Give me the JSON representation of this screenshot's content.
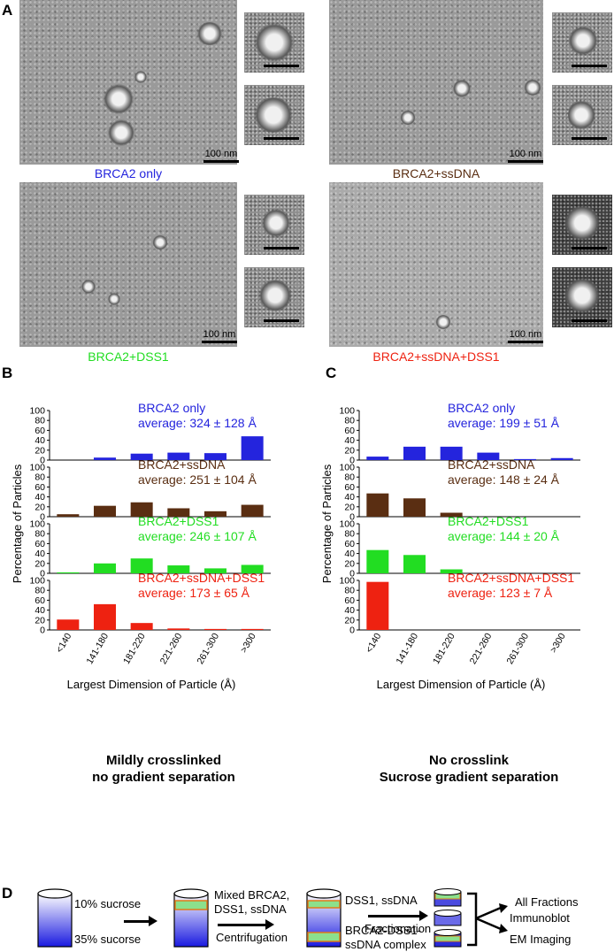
{
  "panels": {
    "a": "A",
    "b": "B",
    "c": "C",
    "d": "D"
  },
  "colors": {
    "blue": "#2424dd",
    "brown": "#5a2e12",
    "green": "#22dd22",
    "red": "#ee2211"
  },
  "micrographs": [
    {
      "caption": "BRCA2 only",
      "scale": "100 nm",
      "color": "#2424dd"
    },
    {
      "caption": "BRCA2+ssDNA",
      "scale": "100 nm",
      "color": "#5a2e12"
    },
    {
      "caption": "BRCA2+DSS1",
      "scale": "100 nm",
      "color": "#22dd22"
    },
    {
      "caption": "BRCA2+ssDNA+DSS1",
      "scale": "100 nm",
      "color": "#ee2211"
    }
  ],
  "chart_data": [
    {
      "type": "bar",
      "panel": "B",
      "ylabel": "Percentage of Particles",
      "xlabel": "Largest Dimension of Particle (Å)",
      "categories": [
        "<140",
        "141-180",
        "181-220",
        "221-260",
        "261-300",
        ">300"
      ],
      "yticks": [
        0,
        20,
        40,
        60,
        80,
        100
      ],
      "ylim": [
        0,
        100
      ],
      "series": [
        {
          "name": "BRCA2 only",
          "avg": "average: 324 ± 128 Å",
          "color": "#2424dd",
          "values": [
            0,
            5,
            13,
            15,
            14,
            48
          ]
        },
        {
          "name": "BRCA2+ssDNA",
          "avg": "average: 251 ± 104 Å",
          "color": "#5a2e12",
          "values": [
            5,
            22,
            29,
            17,
            11,
            24
          ]
        },
        {
          "name": "BRCA2+DSS1",
          "avg": "average: 246 ± 107 Å",
          "color": "#22dd22",
          "values": [
            2,
            20,
            30,
            16,
            10,
            17
          ]
        },
        {
          "name": "BRCA2+ssDNA+DSS1",
          "avg": "average: 173 ± 65 Å",
          "color": "#ee2211",
          "values": [
            21,
            52,
            14,
            3,
            2,
            2
          ]
        }
      ],
      "caption": [
        "Mildly crosslinked",
        "no gradient separation"
      ]
    },
    {
      "type": "bar",
      "panel": "C",
      "ylabel": "Percentage of Particles",
      "xlabel": "Largest Dimension of Particle (Å)",
      "categories": [
        "<140",
        "141-180",
        "181-220",
        "221-260",
        "261-300",
        ">300"
      ],
      "yticks": [
        0,
        20,
        40,
        60,
        80,
        100
      ],
      "ylim": [
        0,
        100
      ],
      "series": [
        {
          "name": "BRCA2 only",
          "avg": "average: 199 ± 51 Å",
          "color": "#2424dd",
          "values": [
            7,
            27,
            27,
            15,
            2,
            4
          ]
        },
        {
          "name": "BRCA2+ssDNA",
          "avg": "average: 148 ± 24 Å",
          "color": "#5a2e12",
          "values": [
            47,
            37,
            8,
            0,
            0,
            0
          ]
        },
        {
          "name": "BRCA2+DSS1",
          "avg": "average: 144 ± 20 Å",
          "color": "#22dd22",
          "values": [
            47,
            37,
            8,
            0,
            0,
            0
          ]
        },
        {
          "name": "BRCA2+ssDNA+DSS1",
          "avg": "average: 123 ± 7 Å",
          "color": "#ee2211",
          "values": [
            97,
            0,
            0,
            0,
            0,
            0
          ]
        }
      ],
      "caption": [
        "No crosslink",
        "Sucrose gradient separation"
      ]
    }
  ],
  "diagram": {
    "tube1_top": "10% sucrose",
    "tube1_bottom": "35% sucorse",
    "tube2_label_1": "Mixed BRCA2,",
    "tube2_label_2": "DSS1, ssDNA",
    "step1": "Centrifugation",
    "tube3_top": "DSS1, ssDNA",
    "tube3_bottom_1": "BRCA2-DSS1-",
    "tube3_bottom_2": "ssDNA complex",
    "step2": "Fractionation",
    "all_fractions": "All Fractions",
    "immunoblot": "Immunoblot",
    "em_imaging": "EM Imaging"
  }
}
